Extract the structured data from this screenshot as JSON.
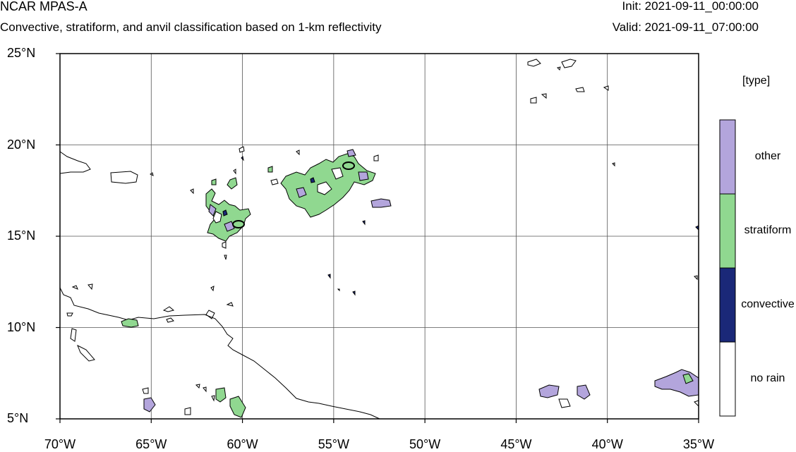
{
  "header": {
    "title": "NCAR MPAS-A",
    "subtitle": "Convective, stratiform, and anvil classification based on 1-km reflectivity",
    "init": "Init: 2021-09-11_00:00:00",
    "valid": "Valid: 2021-09-11_07:00:00"
  },
  "map": {
    "lon_ticks": [
      {
        "value": -70,
        "label": "70°W"
      },
      {
        "value": -65,
        "label": "65°W"
      },
      {
        "value": -60,
        "label": "60°W"
      },
      {
        "value": -55,
        "label": "55°W"
      },
      {
        "value": -50,
        "label": "50°W"
      },
      {
        "value": -45,
        "label": "45°W"
      },
      {
        "value": -40,
        "label": "40°W"
      },
      {
        "value": -35,
        "label": "35°W"
      }
    ],
    "lat_ticks": [
      {
        "value": 25,
        "label": "25°N"
      },
      {
        "value": 20,
        "label": "20°N"
      },
      {
        "value": 15,
        "label": "15°N"
      },
      {
        "value": 10,
        "label": "10°N"
      },
      {
        "value": 5,
        "label": "5°N"
      }
    ],
    "lon_range": [
      -70,
      -35
    ],
    "lat_range": [
      5,
      25
    ],
    "grid": true
  },
  "legend": {
    "title": "[type]",
    "items": [
      {
        "label": "other",
        "color": "#b3a5dc"
      },
      {
        "label": "stratiform",
        "color": "#90d890"
      },
      {
        "label": "convective",
        "color": "#1a2878"
      },
      {
        "label": "no rain",
        "color": "#ffffff"
      }
    ]
  }
}
